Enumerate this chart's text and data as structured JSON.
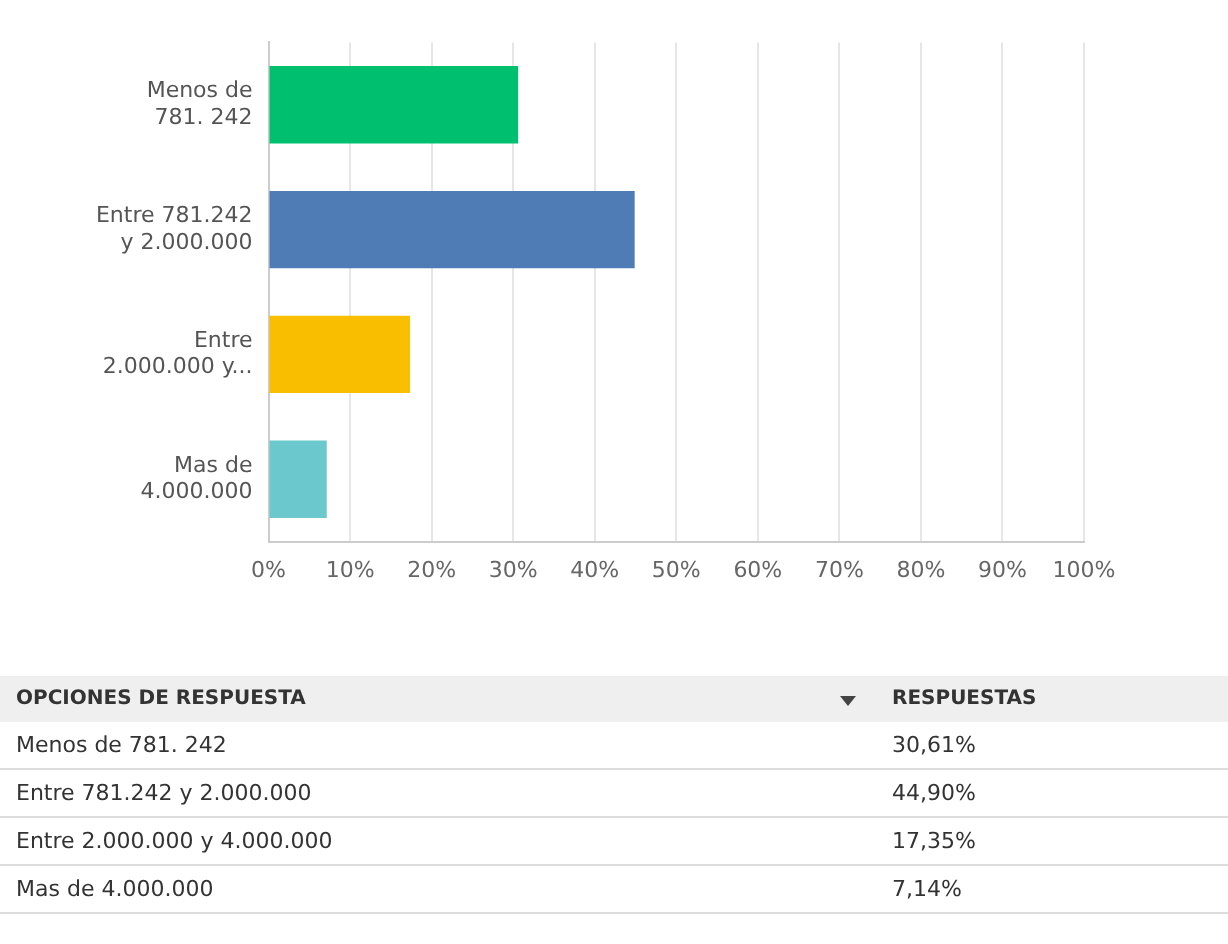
{
  "chart_data": {
    "type": "bar",
    "orientation": "horizontal",
    "categories": [
      "Menos de 781. 242",
      "Entre 781.242 y 2.000.000",
      "Entre 2.000.000 y...",
      "Mas de 4.000.000"
    ],
    "values": [
      30.61,
      44.9,
      17.35,
      7.14
    ],
    "colors": [
      "#00bf6f",
      "#507cb6",
      "#f9be00",
      "#6bc8cd"
    ],
    "xlim": [
      0,
      100
    ],
    "xticks": [
      {
        "value": 0,
        "label": "0%"
      },
      {
        "value": 10,
        "label": "10%"
      },
      {
        "value": 20,
        "label": "20%"
      },
      {
        "value": 30,
        "label": "30%"
      },
      {
        "value": 40,
        "label": "40%"
      },
      {
        "value": 50,
        "label": "50%"
      },
      {
        "value": 60,
        "label": "60%"
      },
      {
        "value": 70,
        "label": "70%"
      },
      {
        "value": 80,
        "label": "80%"
      },
      {
        "value": 90,
        "label": "90%"
      },
      {
        "value": 100,
        "label": "100%"
      }
    ],
    "grid": "x",
    "legend": false,
    "annotations": [
      "OPCIONES DE RESPUESTA",
      "RESPUESTAS",
      "Menos de 781. 242",
      "30,61%",
      "Entre 781.242 y 2.000.000",
      "44,90%",
      "Entre 2.000.000 y 4.000.000",
      "17,35%",
      "Mas de 4.000.000",
      "7,14%"
    ]
  }
}
